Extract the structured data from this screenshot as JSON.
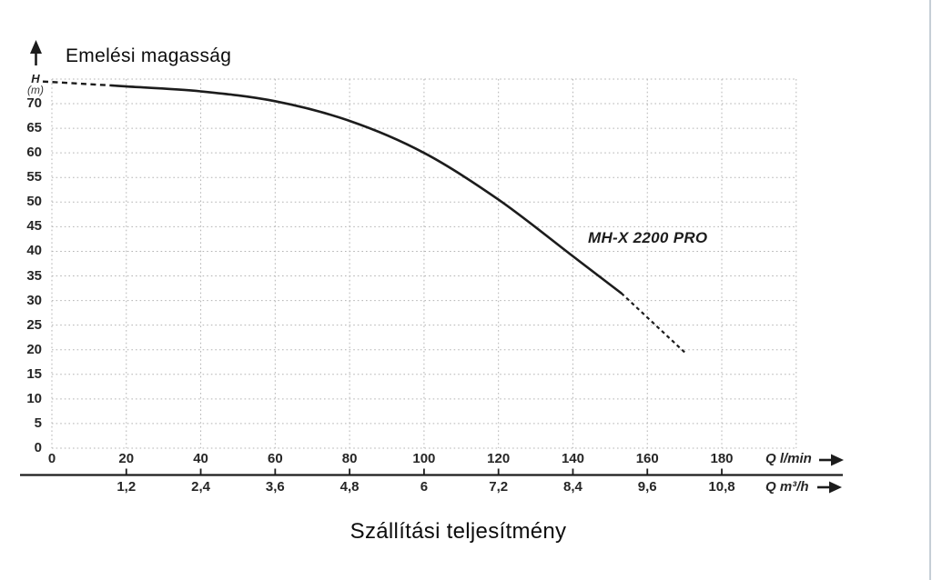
{
  "page": {
    "title_top": "Emelési magasság",
    "title_bottom": "Szállítási teljesítmény"
  },
  "y_axis": {
    "symbol": "H",
    "unit": "(m)",
    "tick_values": [
      70,
      65,
      60,
      55,
      50,
      45,
      40,
      35,
      30,
      25,
      20,
      15,
      10,
      5,
      0
    ]
  },
  "x_axis_primary": {
    "unit_label": "Q l/min",
    "tick_values": [
      0,
      20,
      40,
      60,
      80,
      100,
      120,
      140,
      160,
      180
    ],
    "tick_labels": [
      "0",
      "20",
      "40",
      "60",
      "80",
      "100",
      "120",
      "140",
      "160",
      "180"
    ]
  },
  "x_axis_secondary": {
    "unit_label": "Q m³/h",
    "tick_values": [
      20,
      40,
      60,
      80,
      100,
      120,
      140,
      160,
      180
    ],
    "tick_labels": [
      "1,2",
      "2,4",
      "3,6",
      "4,8",
      "6",
      "7,2",
      "8,4",
      "9,6",
      "10,8"
    ]
  },
  "curve_label": "MH-X 2200 PRO",
  "colors": {
    "curve": "#1c1c1c",
    "axis": "#1c1c1c",
    "grid": "#b3b3b3",
    "text": "#262626",
    "edge": "#c6ced6"
  },
  "chart_data": {
    "type": "line",
    "title": "Emelési magasság",
    "xlabel": "Szállítási teljesítmény",
    "ylabel": "H (m)",
    "x_units": [
      "Q l/min",
      "Q m³/h"
    ],
    "xlim_lmin": [
      0,
      200
    ],
    "ylim_m": [
      0,
      75
    ],
    "grid_step_lmin": 20,
    "grid_step_m": 5,
    "grid_style": "dotted",
    "series": [
      {
        "name": "MH-X 2200 PRO",
        "style": "solid",
        "q_lmin": [
          16,
          20,
          40,
          60,
          80,
          100,
          120,
          140,
          153
        ],
        "h_m": [
          73.7,
          73.5,
          72.5,
          70.5,
          66.5,
          60,
          50.5,
          39,
          31.5
        ]
      }
    ],
    "dashed_extrapolation": {
      "head": {
        "q_lmin": [
          0,
          16
        ],
        "h_m": [
          74.5,
          73.7
        ]
      },
      "tail": {
        "q_lmin": [
          153,
          170
        ],
        "h_m": [
          31.5,
          19.5
        ]
      }
    }
  }
}
